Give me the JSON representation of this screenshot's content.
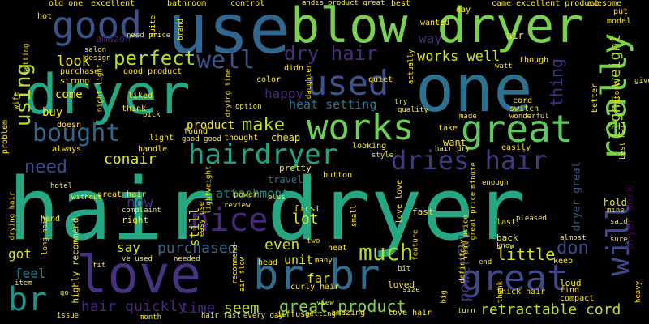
{
  "words": [
    {
      "text": "hair dryer",
      "color": "#26a784"
    },
    {
      "text": "blow dryer",
      "color": "#7ad151"
    },
    {
      "text": "dryer",
      "color": "#22a884"
    },
    {
      "text": "one",
      "color": "#2c728e"
    },
    {
      "text": "use",
      "color": "#31668e"
    },
    {
      "text": "love",
      "color": "#46327e"
    },
    {
      "text": "br br",
      "color": "#2f6c8e"
    },
    {
      "text": "great",
      "color": "#5ec962"
    },
    {
      "text": "great",
      "color": "#3e4a89"
    },
    {
      "text": "works",
      "color": "#70cf57"
    },
    {
      "text": "used",
      "color": "#3b528b"
    },
    {
      "text": "good",
      "color": "#3b528b"
    },
    {
      "text": "really",
      "color": "#7ad151"
    },
    {
      "text": "nice",
      "color": "#482677"
    },
    {
      "text": "hairdryer",
      "color": "#20a386"
    },
    {
      "text": "dries hair",
      "color": "#453882"
    },
    {
      "text": "will",
      "color": "#3e4a89"
    },
    {
      "text": "br",
      "color": "#21918c"
    },
    {
      "text": "bought",
      "color": "#31668e"
    },
    {
      "text": "well",
      "color": "#3b528b"
    },
    {
      "text": "using",
      "color": "#bddf26"
    },
    {
      "text": "perfect",
      "color": "#b5de2b"
    },
    {
      "text": "dry hair",
      "color": "#472d7b"
    },
    {
      "text": "works well",
      "color": "#dae319"
    },
    {
      "text": "much",
      "color": "#b5de2b"
    },
    {
      "text": "make",
      "color": "#c2df23"
    },
    {
      "text": "light weight",
      "color": "#addc30"
    },
    {
      "text": "hair quickly",
      "color": "#482878"
    },
    {
      "text": "retractable cord",
      "color": "#bddf26"
    },
    {
      "text": "great product",
      "color": "#7fd34e"
    },
    {
      "text": "need",
      "color": "#3e4989"
    },
    {
      "text": "thing",
      "color": "#46327e"
    },
    {
      "text": "don",
      "color": "#3e4a89"
    },
    {
      "text": "little",
      "color": "#d8e219"
    },
    {
      "text": "purchased",
      "color": "#31688e"
    },
    {
      "text": "powerful",
      "color": "#46327e"
    },
    {
      "text": "attachment",
      "color": "#21918c"
    },
    {
      "text": "heat setting",
      "color": "#2a788e"
    },
    {
      "text": "conair",
      "color": "#dde318"
    },
    {
      "text": "seem",
      "color": "#bddf26"
    },
    {
      "text": "time",
      "color": "#482878"
    },
    {
      "text": "even",
      "color": "#cae11f"
    },
    {
      "text": "lot",
      "color": "#e5e419"
    },
    {
      "text": "still",
      "color": "#d0e11c"
    },
    {
      "text": "look",
      "color": "#f1e51d"
    },
    {
      "text": "happy",
      "color": "#482878"
    },
    {
      "text": "now",
      "color": "#472f7d"
    },
    {
      "text": "say",
      "color": "#d2e21b"
    },
    {
      "text": "feel",
      "color": "#26828e"
    },
    {
      "text": "got",
      "color": "#dde318"
    },
    {
      "text": "far",
      "color": "#efe51c"
    },
    {
      "text": "unit",
      "color": "#dde318"
    },
    {
      "text": "way",
      "color": "#472c7a"
    },
    {
      "text": "dryer work",
      "color": "#440154"
    },
    {
      "text": "dryer great",
      "color": "#38598c"
    },
    {
      "text": "come",
      "color": "#fde725"
    },
    {
      "text": "buy",
      "color": "#fde725"
    },
    {
      "text": "hold",
      "color": "#fde725"
    },
    {
      "text": "amazon",
      "color": "#481f70"
    },
    {
      "text": "air",
      "color": "#fde725"
    },
    {
      "text": "good product",
      "color": "#fde725"
    },
    {
      "text": "purchase",
      "color": "#fde725"
    },
    {
      "text": "product",
      "color": "#fde725"
    },
    {
      "text": "light",
      "color": "#fde725"
    },
    {
      "text": "cheap",
      "color": "#fde725"
    },
    {
      "text": "want",
      "color": "#fde725"
    },
    {
      "text": "travel",
      "color": "#2c728e"
    },
    {
      "text": "button",
      "color": "#fde725"
    },
    {
      "text": "pretty",
      "color": "#fde725"
    },
    {
      "text": "fast",
      "color": "#fde725"
    },
    {
      "text": "first",
      "color": "#fde725"
    },
    {
      "text": "love love",
      "color": "#fde725"
    },
    {
      "text": "heat",
      "color": "#fde725"
    },
    {
      "text": "loved",
      "color": "#fde725"
    },
    {
      "text": "loud",
      "color": "#fde725"
    },
    {
      "text": "back",
      "color": "#fde725"
    },
    {
      "text": "last",
      "color": "#fde725"
    },
    {
      "text": "keep",
      "color": "#fde725"
    },
    {
      "text": "find",
      "color": "#fde725"
    },
    {
      "text": "compact",
      "color": "#fde725"
    },
    {
      "text": "great hair",
      "color": "#fde725"
    },
    {
      "text": "pleased",
      "color": "#fde725"
    },
    {
      "text": "hand",
      "color": "#fde725"
    },
    {
      "text": "right",
      "color": "#fde725"
    },
    {
      "text": "highly recommend",
      "color": "#fde725"
    },
    {
      "text": "power",
      "color": "#fde725"
    },
    {
      "text": "curly hair",
      "color": "#fde725"
    },
    {
      "text": "diffuser",
      "color": "#fde725"
    },
    {
      "text": "thick hair",
      "color": "#fde725"
    },
    {
      "text": "love hair",
      "color": "#fde725"
    },
    {
      "text": "amazing",
      "color": "#fde725"
    },
    {
      "text": "problem",
      "color": "#fde725"
    },
    {
      "text": "always",
      "color": "#fde725"
    },
    {
      "text": "doesn",
      "color": "#fde725"
    },
    {
      "text": "think",
      "color": "#fde725"
    },
    {
      "text": "liked",
      "color": "#fde725"
    },
    {
      "text": "excellent",
      "color": "#fde725"
    },
    {
      "text": "bathroom",
      "color": "#fde725"
    },
    {
      "text": "control",
      "color": "#fde725"
    },
    {
      "text": "best",
      "color": "#fde725"
    },
    {
      "text": "awesome",
      "color": "#fde725"
    },
    {
      "text": "put",
      "color": "#fde725"
    },
    {
      "text": "model",
      "color": "#fde725"
    },
    {
      "text": "old one",
      "color": "#fde725"
    },
    {
      "text": "came",
      "color": "#fde725"
    },
    {
      "text": "excellent product",
      "color": "#fde725"
    },
    {
      "text": "day",
      "color": "#fde725"
    },
    {
      "text": "wanted",
      "color": "#fde725"
    },
    {
      "text": "quiet",
      "color": "#fde725"
    },
    {
      "text": "didn",
      "color": "#fde725"
    },
    {
      "text": "color",
      "color": "#fde725"
    },
    {
      "text": "strong",
      "color": "#fde725"
    },
    {
      "text": "hot",
      "color": "#fde725"
    },
    {
      "text": "salon",
      "color": "#fde725"
    },
    {
      "text": "design",
      "color": "#fde725"
    },
    {
      "text": "quite",
      "color": "#fde725"
    },
    {
      "text": "brand",
      "color": "#fde725"
    },
    {
      "text": "though",
      "color": "#fde725"
    },
    {
      "text": "better",
      "color": "#fde725"
    },
    {
      "text": "cord",
      "color": "#fde725"
    },
    {
      "text": "switch",
      "color": "#fde725"
    },
    {
      "text": "store",
      "color": "#fde725"
    },
    {
      "text": "give",
      "color": "#fde725"
    },
    {
      "text": "wonderful",
      "color": "#fde725"
    },
    {
      "text": "made",
      "color": "#fde725"
    },
    {
      "text": "take",
      "color": "#fde725"
    },
    {
      "text": "try",
      "color": "#fde725"
    },
    {
      "text": "quality",
      "color": "#fde725"
    },
    {
      "text": "looking",
      "color": "#fde725"
    },
    {
      "text": "style",
      "color": "#fde725"
    },
    {
      "text": "easily",
      "color": "#fde725"
    },
    {
      "text": "best hair",
      "color": "#fde725"
    },
    {
      "text": "handle",
      "color": "#fde725"
    },
    {
      "text": "found",
      "color": "#fde725"
    },
    {
      "text": "good good",
      "color": "#fde725"
    },
    {
      "text": "thought",
      "color": "#fde725"
    },
    {
      "text": "hotel",
      "color": "#fde725"
    },
    {
      "text": "without",
      "color": "#fde725"
    },
    {
      "text": "drying hair",
      "color": "#fde725"
    },
    {
      "text": "long hair",
      "color": "#fde725"
    },
    {
      "text": "fit",
      "color": "#fde725"
    },
    {
      "text": "ve used",
      "color": "#fde725"
    },
    {
      "text": "needed",
      "color": "#fde725"
    },
    {
      "text": "recommend",
      "color": "#fde725"
    },
    {
      "text": "air flow",
      "color": "#fde725"
    },
    {
      "text": "head",
      "color": "#fde725"
    },
    {
      "text": "many",
      "color": "#fde725"
    },
    {
      "text": "two",
      "color": "#fde725"
    },
    {
      "text": "bit",
      "color": "#fde725"
    },
    {
      "text": "small",
      "color": "#fde725"
    },
    {
      "text": "feature",
      "color": "#fde725"
    },
    {
      "text": "end",
      "color": "#fde725"
    },
    {
      "text": "heavy",
      "color": "#fde725"
    },
    {
      "text": "turn",
      "color": "#fde725"
    },
    {
      "text": "issue",
      "color": "#fde725"
    },
    {
      "text": "go",
      "color": "#fde725"
    },
    {
      "text": "item",
      "color": "#fde725"
    },
    {
      "text": "hair fast",
      "color": "#fde725"
    },
    {
      "text": "every day",
      "color": "#fde725"
    },
    {
      "text": "month",
      "color": "#fde725"
    },
    {
      "text": "view",
      "color": "#fde725"
    },
    {
      "text": "easy use",
      "color": "#fde725"
    },
    {
      "text": "plus",
      "color": "#fde725"
    },
    {
      "text": "review",
      "color": "#fde725"
    },
    {
      "text": "mine",
      "color": "#fde725"
    },
    {
      "text": "said",
      "color": "#fde725"
    },
    {
      "text": "sure",
      "color": "#fde725"
    },
    {
      "text": "almost",
      "color": "#fde725"
    },
    {
      "text": "know",
      "color": "#fde725"
    },
    {
      "text": "thank",
      "color": "#fde725"
    },
    {
      "text": "size",
      "color": "#fde725"
    },
    {
      "text": "big",
      "color": "#fde725"
    },
    {
      "text": "getting",
      "color": "#fde725"
    },
    {
      "text": "real price",
      "color": "#fde725"
    },
    {
      "text": "great price",
      "color": "#fde725"
    },
    {
      "text": "definitely",
      "color": "#fde725"
    },
    {
      "text": "daughter",
      "color": "#fde725"
    },
    {
      "text": "actually",
      "color": "#fde725"
    },
    {
      "text": "watt",
      "color": "#fde725"
    },
    {
      "text": "enough",
      "color": "#fde725"
    },
    {
      "text": "minute",
      "color": "#fde725"
    },
    {
      "text": "hair dry",
      "color": "#fde725"
    },
    {
      "text": "product great",
      "color": "#fde725"
    },
    {
      "text": "andis",
      "color": "#fde725"
    },
    {
      "text": "option",
      "color": "#fde725"
    },
    {
      "text": "drying time",
      "color": "#fde725"
    },
    {
      "text": "night light",
      "color": "#fde725"
    },
    {
      "text": "complaint",
      "color": "#fde725"
    },
    {
      "text": "lightweight",
      "color": "#fde725"
    },
    {
      "text": "setting",
      "color": "#fde725"
    },
    {
      "text": "wife",
      "color": "#fde725"
    },
    {
      "text": "need price",
      "color": "#fde725"
    },
    {
      "text": "pick",
      "color": "#fde725"
    }
  ]
}
